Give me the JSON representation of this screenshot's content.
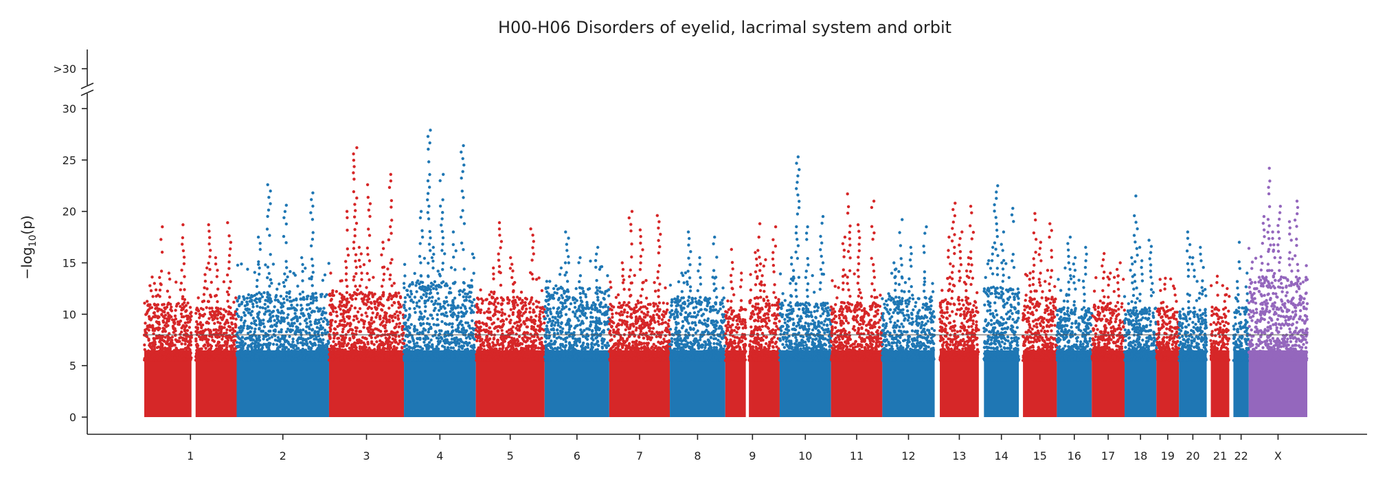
{
  "chart_data": {
    "type": "scatter",
    "subtype": "manhattan",
    "title": "H00-H06 Disorders of eyelid, lacrimal system and orbit",
    "ylabel": "−log",
    "ylabel_sub": "10",
    "ylabel_tail": "(p)",
    "ylim": [
      0,
      30
    ],
    "y_ticks": [
      0,
      5,
      10,
      15,
      20,
      25,
      30
    ],
    "y_overflow_label": ">30",
    "y_overflow_value": 30,
    "axis_break": true,
    "threshold_line": 8,
    "grid": false,
    "legend": "none",
    "colors": {
      "odd": "#d62728",
      "even": "#1f77b4",
      "X": "#9467bd",
      "axis": "#222222",
      "threshold": "#555555"
    },
    "chromosomes": [
      {
        "label": "1",
        "start": 0.0,
        "end": 4.6,
        "color": "odd",
        "base": 10.5,
        "peaks": [
          18.5,
          18.7,
          14.0,
          13.0
        ]
      },
      {
        "label": "",
        "start": 5.0,
        "end": 9.0,
        "color": "odd",
        "base": 10.0,
        "peaks": [
          18.7,
          18.9,
          15.5,
          14.5
        ]
      },
      {
        "label": "2",
        "start": 9.0,
        "end": 18.0,
        "color": "even",
        "base": 11.5,
        "peaks": [
          22.6,
          21.8,
          20.6,
          17.5,
          15.5
        ]
      },
      {
        "label": "3",
        "start": 18.0,
        "end": 25.3,
        "color": "odd",
        "base": 11.5,
        "peaks": [
          26.2,
          23.6,
          22.6,
          20.0,
          17.0,
          16.5
        ]
      },
      {
        "label": "4",
        "start": 25.3,
        "end": 32.3,
        "color": "even",
        "base": 12.5,
        "peaks": [
          27.9,
          26.4,
          23.6,
          20.0,
          18.0,
          16.5
        ]
      },
      {
        "label": "5",
        "start": 32.3,
        "end": 39.0,
        "color": "odd",
        "base": 11.0,
        "peaks": [
          18.9,
          18.3,
          15.5,
          14.5
        ]
      },
      {
        "label": "6",
        "start": 39.0,
        "end": 45.3,
        "color": "even",
        "base": 12.0,
        "peaks": [
          18.0,
          16.5,
          15.5,
          14.5
        ]
      },
      {
        "label": "7",
        "start": 45.3,
        "end": 51.2,
        "color": "odd",
        "base": 10.5,
        "peaks": [
          20.0,
          19.6,
          18.2,
          15.0
        ]
      },
      {
        "label": "8",
        "start": 51.2,
        "end": 56.6,
        "color": "even",
        "base": 11.0,
        "peaks": [
          18.0,
          17.5,
          15.5,
          14.0
        ]
      },
      {
        "label": "9",
        "start": 56.6,
        "end": 58.6,
        "color": "odd",
        "base": 10.0,
        "peaks": [
          16.3,
          14.0
        ]
      },
      {
        "label": "",
        "start": 58.9,
        "end": 61.9,
        "color": "odd",
        "base": 11.0,
        "peaks": [
          18.8,
          18.5,
          15.3,
          16.0
        ]
      },
      {
        "label": "10",
        "start": 61.9,
        "end": 66.9,
        "color": "even",
        "base": 10.5,
        "peaks": [
          25.3,
          19.5,
          18.5,
          15.5
        ]
      },
      {
        "label": "11",
        "start": 66.9,
        "end": 71.9,
        "color": "odd",
        "base": 10.5,
        "peaks": [
          21.7,
          21.0,
          18.7,
          17.5
        ]
      },
      {
        "label": "12",
        "start": 71.9,
        "end": 77.0,
        "color": "even",
        "base": 11.0,
        "peaks": [
          19.2,
          18.5,
          16.5,
          15.0
        ]
      },
      {
        "label": "13",
        "start": 77.5,
        "end": 81.3,
        "color": "odd",
        "base": 11.0,
        "peaks": [
          20.8,
          20.5,
          18.0,
          17.5,
          15.5
        ]
      },
      {
        "label": "14",
        "start": 81.8,
        "end": 85.2,
        "color": "even",
        "base": 12.0,
        "peaks": [
          22.5,
          20.3,
          18.0,
          16.5
        ]
      },
      {
        "label": "15",
        "start": 85.6,
        "end": 88.9,
        "color": "odd",
        "base": 11.0,
        "peaks": [
          19.8,
          18.8,
          17.0,
          14.0
        ]
      },
      {
        "label": "16",
        "start": 88.9,
        "end": 92.3,
        "color": "even",
        "base": 10.0,
        "peaks": [
          17.5,
          16.5,
          15.5,
          14.5
        ]
      },
      {
        "label": "17",
        "start": 92.3,
        "end": 95.5,
        "color": "odd",
        "base": 10.5,
        "peaks": [
          15.9,
          15.0,
          14.0
        ]
      },
      {
        "label": "18",
        "start": 95.5,
        "end": 98.6,
        "color": "even",
        "base": 10.0,
        "peaks": [
          21.5,
          17.2,
          16.5,
          15.5
        ]
      },
      {
        "label": "19",
        "start": 98.6,
        "end": 100.8,
        "color": "odd",
        "base": 10.0,
        "peaks": [
          13.5,
          12.5
        ]
      },
      {
        "label": "20",
        "start": 100.8,
        "end": 103.5,
        "color": "even",
        "base": 10.0,
        "peaks": [
          18.0,
          16.5,
          15.5
        ]
      },
      {
        "label": "21",
        "start": 103.9,
        "end": 105.7,
        "color": "odd",
        "base": 10.0,
        "peaks": [
          13.7,
          12.5
        ]
      },
      {
        "label": "22",
        "start": 106.1,
        "end": 107.6,
        "color": "even",
        "base": 10.0,
        "peaks": [
          17.0,
          14.0
        ]
      },
      {
        "label": "X",
        "start": 107.6,
        "end": 113.3,
        "color": "X",
        "base": 13.0,
        "peaks": [
          24.2,
          21.0,
          20.5,
          19.5,
          19.0,
          18.0
        ]
      }
    ]
  }
}
